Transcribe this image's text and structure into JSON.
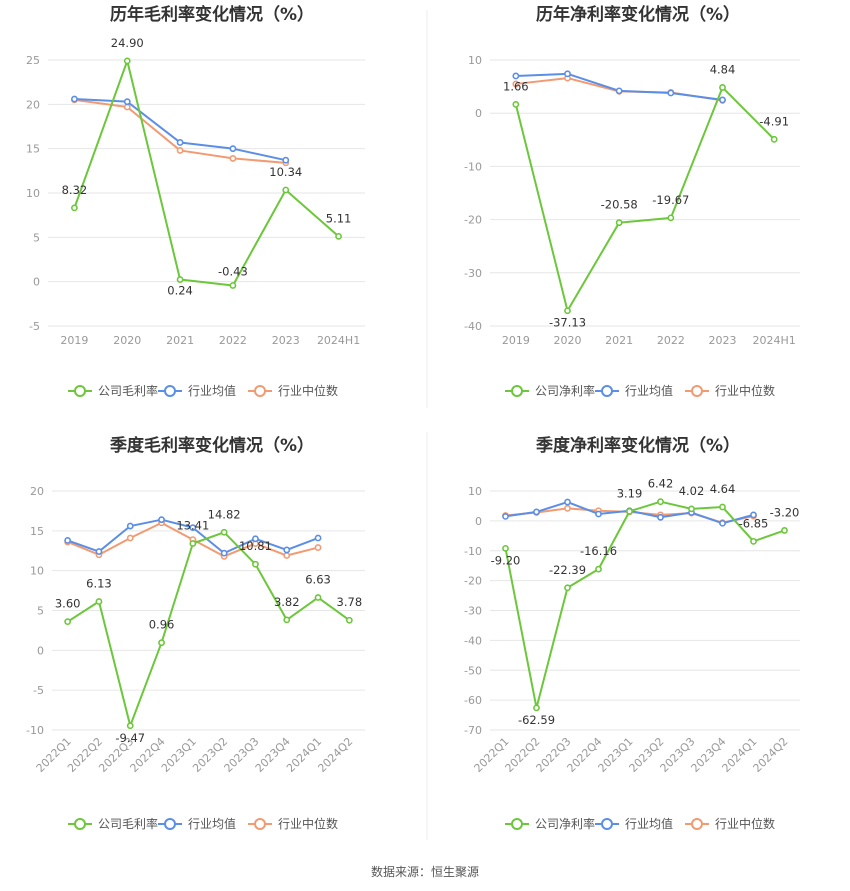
{
  "colors": {
    "company": "#6cc73b",
    "industry_avg": "#5b8ee6",
    "industry_median": "#f29a72",
    "grid": "#e6e6e6",
    "divider": "#eeeeee"
  },
  "source_text": "数据来源：恒生聚源",
  "chart_data": [
    {
      "type": "line",
      "title": "历年毛利率变化情况（%）",
      "categories": [
        "2019",
        "2020",
        "2021",
        "2022",
        "2023",
        "2024H1"
      ],
      "ylim": [
        -5,
        25
      ],
      "yticks": [
        -5,
        0,
        5,
        10,
        15,
        20,
        25
      ],
      "series": [
        {
          "name": "公司毛利率",
          "values": [
            8.32,
            24.9,
            0.24,
            -0.43,
            10.34,
            5.11
          ],
          "labels": [
            "8.32",
            "24.90",
            "0.24",
            "-0.43",
            "10.34",
            "5.11"
          ]
        },
        {
          "name": "行业均值",
          "values": [
            20.6,
            20.3,
            15.7,
            15.0,
            13.7,
            null
          ]
        },
        {
          "name": "行业中位数",
          "values": [
            20.5,
            19.7,
            14.8,
            13.9,
            13.4,
            null
          ]
        }
      ],
      "legend": [
        "公司毛利率",
        "行业均值",
        "行业中位数"
      ],
      "legend_position": "bottom",
      "grid": true
    },
    {
      "type": "line",
      "title": "历年净利率变化情况（%）",
      "categories": [
        "2019",
        "2020",
        "2021",
        "2022",
        "2023",
        "2024H1"
      ],
      "ylim": [
        -40,
        10
      ],
      "yticks": [
        -40,
        -30,
        -20,
        -10,
        0,
        10
      ],
      "series": [
        {
          "name": "公司净利率",
          "values": [
            1.66,
            -37.13,
            -20.58,
            -19.67,
            4.84,
            -4.91
          ],
          "labels": [
            "1.66",
            "-37.13",
            "-20.58",
            "-19.67",
            "4.84",
            "-4.91"
          ]
        },
        {
          "name": "行业均值",
          "values": [
            7.0,
            7.4,
            4.2,
            3.8,
            2.5,
            null
          ]
        },
        {
          "name": "行业中位数",
          "values": [
            5.5,
            6.6,
            4.1,
            3.9,
            2.4,
            null
          ]
        }
      ],
      "legend": [
        "公司净利率",
        "行业均值",
        "行业中位数"
      ],
      "legend_position": "bottom",
      "grid": true
    },
    {
      "type": "line",
      "title": "季度毛利率变化情况（%）",
      "categories": [
        "2022Q1",
        "2022Q2",
        "2022Q3",
        "2022Q4",
        "2023Q1",
        "2023Q2",
        "2023Q3",
        "2023Q4",
        "2024Q1",
        "2024Q2"
      ],
      "ylim": [
        -10,
        20
      ],
      "yticks": [
        -10,
        -5,
        0,
        5,
        10,
        15,
        20
      ],
      "series": [
        {
          "name": "公司毛利率",
          "values": [
            3.6,
            6.13,
            -9.47,
            0.96,
            13.41,
            14.82,
            10.81,
            3.82,
            6.63,
            3.78
          ],
          "labels": [
            "3.60",
            "6.13",
            "-9.47",
            "0.96",
            "13.41",
            "14.82",
            "10.81",
            "3.82",
            "6.63",
            "3.78"
          ]
        },
        {
          "name": "行业均值",
          "values": [
            13.8,
            12.4,
            15.6,
            16.4,
            15.4,
            12.2,
            14.0,
            12.6,
            14.1,
            null
          ]
        },
        {
          "name": "行业中位数",
          "values": [
            13.6,
            12.0,
            14.1,
            16.0,
            13.9,
            11.8,
            13.4,
            11.9,
            12.9,
            null
          ]
        }
      ],
      "legend": [
        "公司毛利率",
        "行业均值",
        "行业中位数"
      ],
      "legend_position": "bottom",
      "grid": true
    },
    {
      "type": "line",
      "title": "季度净利率变化情况（%）",
      "categories": [
        "2022Q1",
        "2022Q2",
        "2022Q3",
        "2022Q4",
        "2023Q1",
        "2023Q2",
        "2023Q3",
        "2023Q4",
        "2024Q1",
        "2024Q2"
      ],
      "ylim": [
        -70,
        10
      ],
      "yticks": [
        -70,
        -60,
        -50,
        -40,
        -30,
        -20,
        -10,
        0,
        10
      ],
      "series": [
        {
          "name": "公司净利率",
          "values": [
            -9.2,
            -62.59,
            -22.39,
            -16.16,
            3.19,
            6.42,
            4.02,
            4.64,
            -6.85,
            -3.2
          ],
          "labels": [
            "-9.20",
            "-62.59",
            "-22.39",
            "-16.16",
            "3.19",
            "6.42",
            "4.02",
            "4.64",
            "-6.85",
            "-3.20"
          ]
        },
        {
          "name": "行业均值",
          "values": [
            1.5,
            3.0,
            6.3,
            2.3,
            3.4,
            1.2,
            2.8,
            -0.8,
            2.0,
            null
          ]
        },
        {
          "name": "行业中位数",
          "values": [
            1.8,
            2.8,
            4.2,
            3.4,
            3.0,
            2.0,
            2.6,
            -0.6,
            1.6,
            null
          ]
        }
      ],
      "legend": [
        "公司净利率",
        "行业均值",
        "行业中位数"
      ],
      "legend_position": "bottom",
      "grid": true
    }
  ]
}
